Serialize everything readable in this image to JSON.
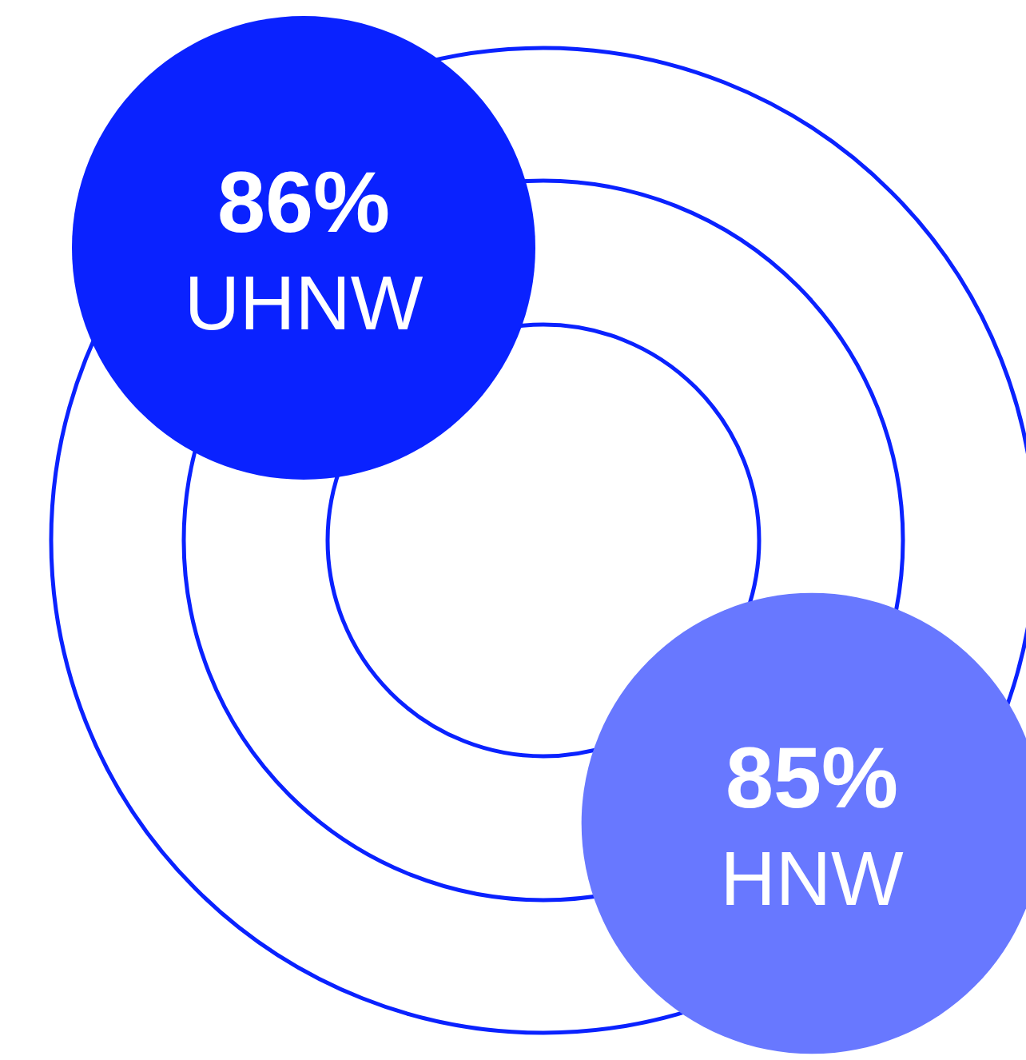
{
  "chart_data": {
    "type": "other",
    "categories": [
      "UHNW",
      "HNW"
    ],
    "values": [
      86,
      85
    ],
    "value_labels": [
      "86%",
      "85%"
    ],
    "colors": [
      "#0a22ff",
      "#6878ff"
    ]
  }
}
